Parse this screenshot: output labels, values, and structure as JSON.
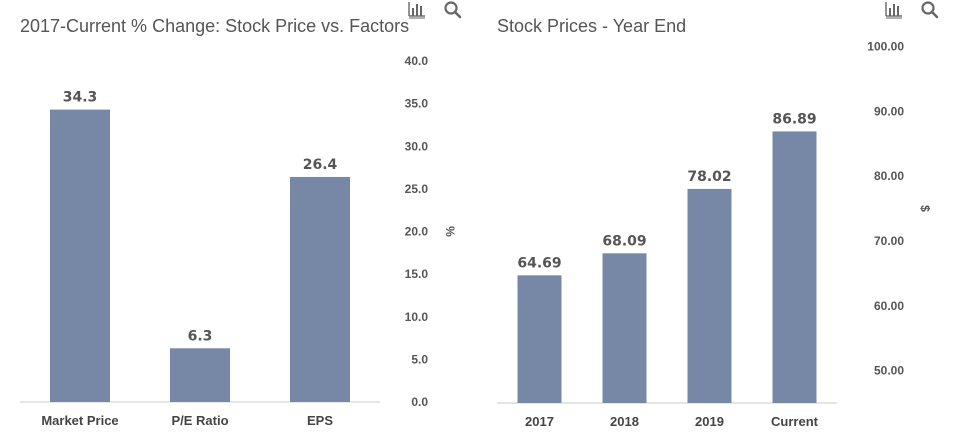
{
  "colors": {
    "bar": "#7788a6",
    "axis": "#cccccc",
    "text": "#555555"
  },
  "icons": [
    "bar-chart-icon",
    "search-icon"
  ],
  "chart_data": [
    {
      "type": "bar",
      "title": "2017-Current % Change: Stock Price vs. Factors",
      "categories": [
        "Market Price",
        "P/E Ratio",
        "EPS"
      ],
      "values": [
        34.3,
        6.3,
        26.4
      ],
      "value_labels": [
        "34.3",
        "6.3",
        "26.4"
      ],
      "ylabel": "%",
      "ylim": [
        0,
        40
      ],
      "yticks": [
        "0.0",
        "5.0",
        "10.0",
        "15.0",
        "20.0",
        "25.0",
        "30.0",
        "35.0",
        "40.0"
      ],
      "grid": false,
      "y_axis_side": "right"
    },
    {
      "type": "bar",
      "title": "Stock Prices - Year End",
      "categories": [
        "2017",
        "2018",
        "2019",
        "Current"
      ],
      "values": [
        64.69,
        68.09,
        78.02,
        86.89
      ],
      "value_labels": [
        "64.69",
        "68.09",
        "78.02",
        "86.89"
      ],
      "ylabel": "$",
      "ylim": [
        45,
        105
      ],
      "yticks": [
        "50.00",
        "60.00",
        "70.00",
        "80.00",
        "90.00",
        "100.00"
      ],
      "grid": false,
      "y_axis_side": "right"
    }
  ]
}
